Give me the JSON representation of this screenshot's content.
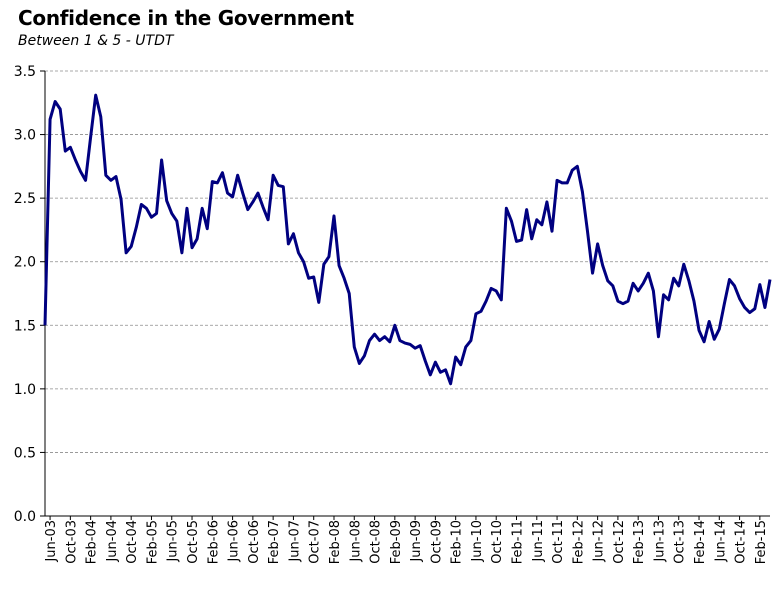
{
  "chart_data": {
    "type": "line",
    "title": "Confidence in the Government",
    "subtitle": "Between 1 & 5 - UTDT",
    "xlabel": "",
    "ylabel": "",
    "ylim": [
      0,
      3.5
    ],
    "yticks": [
      "0.0",
      "0.5",
      "1.0",
      "1.5",
      "2.0",
      "2.5",
      "3.0",
      "3.5"
    ],
    "x_tick_labels": [
      "Jun-03",
      "Oct-03",
      "Feb-04",
      "Jun-04",
      "Oct-04",
      "Feb-05",
      "Jun-05",
      "Oct-05",
      "Feb-06",
      "Jun-06",
      "Oct-06",
      "Feb-07",
      "Jun-07",
      "Oct-07",
      "Feb-08",
      "Jun-08",
      "Oct-08",
      "Feb-09",
      "Jun-09",
      "Oct-09",
      "Feb-10",
      "Jun-10",
      "Oct-10",
      "Feb-11",
      "Jun-11",
      "Oct-11",
      "Feb-12",
      "Jun-12",
      "Oct-12",
      "Feb-13",
      "Jun-13",
      "Oct-13",
      "Feb-14",
      "Jun-14",
      "Oct-14",
      "Feb-15"
    ],
    "grid": true,
    "legend": "none",
    "line_color": "#000080",
    "series": [
      {
        "x_start": "2003-05",
        "frequency": "monthly",
        "values": [
          1.5,
          3.12,
          3.26,
          3.2,
          2.87,
          2.9,
          2.8,
          2.71,
          2.64,
          2.98,
          3.31,
          3.14,
          2.68,
          2.64,
          2.67,
          2.49,
          2.07,
          2.12,
          2.27,
          2.45,
          2.42,
          2.35,
          2.38,
          2.8,
          2.48,
          2.38,
          2.32,
          2.07,
          2.42,
          2.11,
          2.18,
          2.42,
          2.26,
          2.63,
          2.62,
          2.7,
          2.54,
          2.51,
          2.68,
          2.54,
          2.41,
          2.47,
          2.54,
          2.43,
          2.33,
          2.68,
          2.6,
          2.59,
          2.14,
          2.22,
          2.07,
          2.0,
          1.87,
          1.88,
          1.68,
          1.98,
          2.04,
          2.36,
          1.97,
          1.87,
          1.75,
          1.33,
          1.2,
          1.26,
          1.38,
          1.43,
          1.38,
          1.41,
          1.37,
          1.5,
          1.38,
          1.36,
          1.35,
          1.32,
          1.34,
          1.22,
          1.11,
          1.21,
          1.13,
          1.15,
          1.04,
          1.25,
          1.19,
          1.33,
          1.38,
          1.59,
          1.61,
          1.69,
          1.79,
          1.77,
          1.7,
          2.42,
          2.32,
          2.16,
          2.17,
          2.41,
          2.18,
          2.33,
          2.29,
          2.47,
          2.24,
          2.64,
          2.62,
          2.62,
          2.72,
          2.75,
          2.55,
          2.24,
          1.91,
          2.14,
          1.97,
          1.85,
          1.81,
          1.69,
          1.67,
          1.69,
          1.83,
          1.77,
          1.83,
          1.91,
          1.77,
          1.41,
          1.74,
          1.7,
          1.87,
          1.81,
          1.98,
          1.85,
          1.69,
          1.46,
          1.37,
          1.53,
          1.39,
          1.47,
          1.67,
          1.86,
          1.81,
          1.71,
          1.64,
          1.6,
          1.63,
          1.82,
          1.64,
          1.86
        ]
      }
    ]
  }
}
